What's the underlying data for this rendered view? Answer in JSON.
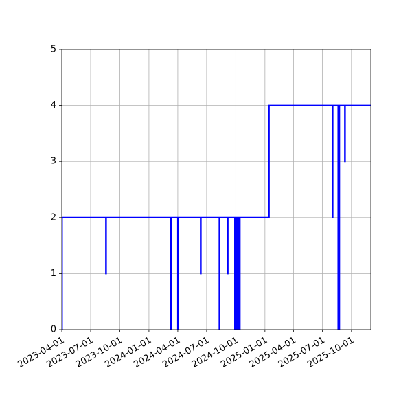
{
  "chart_data": {
    "type": "line",
    "title": "",
    "xlabel": "",
    "ylabel": "",
    "x_axis": "date",
    "xlim": [
      "2023-04-01",
      "2025-12-01"
    ],
    "ylim": [
      0,
      5
    ],
    "grid": true,
    "line_style": "steps-post",
    "xticks": [
      "2023-04-01",
      "2023-07-01",
      "2023-10-01",
      "2024-01-01",
      "2024-04-01",
      "2024-07-01",
      "2024-10-01",
      "2025-01-01",
      "2025-04-01",
      "2025-07-01",
      "2025-10-01"
    ],
    "yticks": [
      0,
      1,
      2,
      3,
      4,
      5
    ],
    "series": [
      {
        "color": "#0000ff",
        "points": [
          [
            "2023-04-01",
            0
          ],
          [
            "2023-04-02",
            2
          ],
          [
            "2023-08-18",
            1
          ],
          [
            "2023-08-19",
            2
          ],
          [
            "2024-03-10",
            0
          ],
          [
            "2024-03-11",
            2
          ],
          [
            "2024-04-01",
            0
          ],
          [
            "2024-04-02",
            2
          ],
          [
            "2024-06-12",
            1
          ],
          [
            "2024-06-13",
            2
          ],
          [
            "2024-08-10",
            0
          ],
          [
            "2024-08-11",
            2
          ],
          [
            "2024-09-05",
            1
          ],
          [
            "2024-09-06",
            2
          ],
          [
            "2024-09-28",
            0
          ],
          [
            "2024-09-30",
            2
          ],
          [
            "2024-10-02",
            0
          ],
          [
            "2024-10-04",
            2
          ],
          [
            "2024-10-08",
            0
          ],
          [
            "2024-10-10",
            2
          ],
          [
            "2024-10-12",
            0
          ],
          [
            "2024-10-14",
            2
          ],
          [
            "2025-01-14",
            4
          ],
          [
            "2025-08-02",
            2
          ],
          [
            "2025-08-03",
            4
          ],
          [
            "2025-08-20",
            0
          ],
          [
            "2025-08-24",
            4
          ],
          [
            "2025-09-10",
            3
          ],
          [
            "2025-09-11",
            4
          ],
          [
            "2025-12-01",
            4
          ]
        ]
      }
    ]
  }
}
